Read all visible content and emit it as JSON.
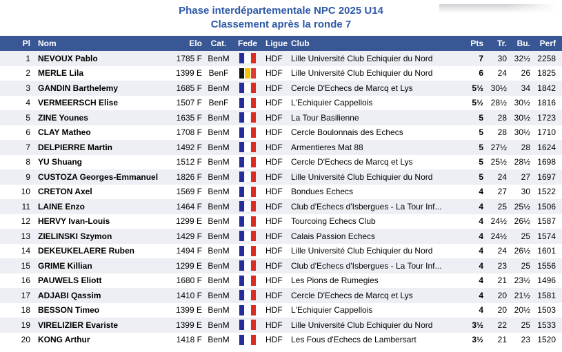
{
  "page": {
    "title_line1": "Phase interdépartementale NPC 2025 U14",
    "title_line2": "Classement après la ronde 7"
  },
  "colors": {
    "title_blue": "#2D59A7",
    "header_bg": "#3A5795",
    "row_alt_bg": "#EDEFF4",
    "flags": {
      "FRA": [
        "#272C9B",
        "#FFFFFF",
        "#DB2C23"
      ],
      "BEL": [
        "#141410",
        "#F8C300",
        "#DE3C31"
      ]
    }
  },
  "table": {
    "columns": [
      {
        "key": "pl",
        "label": "Pl"
      },
      {
        "key": "nom",
        "label": "Nom"
      },
      {
        "key": "elo",
        "label": "Elo"
      },
      {
        "key": "cat",
        "label": "Cat."
      },
      {
        "key": "fede",
        "label": "Fede"
      },
      {
        "key": "ligue",
        "label": "Ligue"
      },
      {
        "key": "club",
        "label": "Club"
      },
      {
        "key": "pts",
        "label": "Pts"
      },
      {
        "key": "tr",
        "label": "Tr."
      },
      {
        "key": "bu",
        "label": "Bu."
      },
      {
        "key": "perf",
        "label": "Perf"
      }
    ],
    "rows": [
      {
        "pl": "1",
        "nom": "NEVOUX Pablo",
        "elo": "1785 F",
        "cat": "BenM",
        "fede": "FRA",
        "ligue": "HDF",
        "club": "Lille Université Club Echiquier du Nord",
        "pts": "7",
        "tr": "30",
        "bu": "32½",
        "perf": "2258"
      },
      {
        "pl": "2",
        "nom": "MERLE Lila",
        "elo": "1399 E",
        "cat": "BenF",
        "fede": "BEL",
        "ligue": "HDF",
        "club": "Lille Université Club Echiquier du Nord",
        "pts": "6",
        "tr": "24",
        "bu": "26",
        "perf": "1825"
      },
      {
        "pl": "3",
        "nom": "GANDIN Barthelemy",
        "elo": "1685 F",
        "cat": "BenM",
        "fede": "FRA",
        "ligue": "HDF",
        "club": "Cercle D'Echecs de Marcq et Lys",
        "pts": "5½",
        "tr": "30½",
        "bu": "34",
        "perf": "1842"
      },
      {
        "pl": "4",
        "nom": "VERMEERSCH Elise",
        "elo": "1507 F",
        "cat": "BenF",
        "fede": "FRA",
        "ligue": "HDF",
        "club": "L'Echiquier Cappellois",
        "pts": "5½",
        "tr": "28½",
        "bu": "30½",
        "perf": "1816"
      },
      {
        "pl": "5",
        "nom": "ZINE Younes",
        "elo": "1635 F",
        "cat": "BenM",
        "fede": "FRA",
        "ligue": "HDF",
        "club": "La Tour Basilienne",
        "pts": "5",
        "tr": "28",
        "bu": "30½",
        "perf": "1723"
      },
      {
        "pl": "6",
        "nom": "CLAY Matheo",
        "elo": "1708 F",
        "cat": "BenM",
        "fede": "FRA",
        "ligue": "HDF",
        "club": "Cercle Boulonnais des Echecs",
        "pts": "5",
        "tr": "28",
        "bu": "30½",
        "perf": "1710"
      },
      {
        "pl": "7",
        "nom": "DELPIERRE Martin",
        "elo": "1492 F",
        "cat": "BenM",
        "fede": "FRA",
        "ligue": "HDF",
        "club": "Armentieres Mat 88",
        "pts": "5",
        "tr": "27½",
        "bu": "28",
        "perf": "1624"
      },
      {
        "pl": "8",
        "nom": "YU Shuang",
        "elo": "1512 F",
        "cat": "BenM",
        "fede": "FRA",
        "ligue": "HDF",
        "club": "Cercle D'Echecs de Marcq et Lys",
        "pts": "5",
        "tr": "25½",
        "bu": "28½",
        "perf": "1698"
      },
      {
        "pl": "9",
        "nom": "CUSTOZA Georges-Emmanuel",
        "elo": "1826 F",
        "cat": "BenM",
        "fede": "FRA",
        "ligue": "HDF",
        "club": "Lille Université Club Echiquier du Nord",
        "pts": "5",
        "tr": "24",
        "bu": "27",
        "perf": "1697"
      },
      {
        "pl": "10",
        "nom": "CRETON Axel",
        "elo": "1569 F",
        "cat": "BenM",
        "fede": "FRA",
        "ligue": "HDF",
        "club": "Bondues Echecs",
        "pts": "4",
        "tr": "27",
        "bu": "30",
        "perf": "1522"
      },
      {
        "pl": "11",
        "nom": "LAINE Enzo",
        "elo": "1464 F",
        "cat": "BenM",
        "fede": "FRA",
        "ligue": "HDF",
        "club": "Club d'Echecs d'Isbergues - La Tour Inf...",
        "pts": "4",
        "tr": "25",
        "bu": "25½",
        "perf": "1506"
      },
      {
        "pl": "12",
        "nom": "HERVY Ivan-Louis",
        "elo": "1299 E",
        "cat": "BenM",
        "fede": "FRA",
        "ligue": "HDF",
        "club": "Tourcoing Echecs Club",
        "pts": "4",
        "tr": "24½",
        "bu": "26½",
        "perf": "1587"
      },
      {
        "pl": "13",
        "nom": "ZIELINSKI Szymon",
        "elo": "1429 F",
        "cat": "BenM",
        "fede": "FRA",
        "ligue": "HDF",
        "club": "Calais Passion Echecs",
        "pts": "4",
        "tr": "24½",
        "bu": "25",
        "perf": "1574"
      },
      {
        "pl": "14",
        "nom": "DEKEUKELAERE Ruben",
        "elo": "1494 F",
        "cat": "BenM",
        "fede": "FRA",
        "ligue": "HDF",
        "club": "Lille Université Club Echiquier du Nord",
        "pts": "4",
        "tr": "24",
        "bu": "26½",
        "perf": "1601"
      },
      {
        "pl": "15",
        "nom": "GRIME Killian",
        "elo": "1299 E",
        "cat": "BenM",
        "fede": "FRA",
        "ligue": "HDF",
        "club": "Club d'Echecs d'Isbergues - La Tour Inf...",
        "pts": "4",
        "tr": "23",
        "bu": "25",
        "perf": "1556"
      },
      {
        "pl": "16",
        "nom": "PAUWELS Eliott",
        "elo": "1680 F",
        "cat": "BenM",
        "fede": "FRA",
        "ligue": "HDF",
        "club": "Les Pions de Rumegies",
        "pts": "4",
        "tr": "21",
        "bu": "23½",
        "perf": "1496"
      },
      {
        "pl": "17",
        "nom": "ADJABI Qassim",
        "elo": "1410 F",
        "cat": "BenM",
        "fede": "FRA",
        "ligue": "HDF",
        "club": "Cercle D'Echecs de Marcq et Lys",
        "pts": "4",
        "tr": "20",
        "bu": "21½",
        "perf": "1581"
      },
      {
        "pl": "18",
        "nom": "BESSON Timeo",
        "elo": "1399 E",
        "cat": "BenM",
        "fede": "FRA",
        "ligue": "HDF",
        "club": "L'Echiquier Cappellois",
        "pts": "4",
        "tr": "20",
        "bu": "20½",
        "perf": "1503"
      },
      {
        "pl": "19",
        "nom": "VIRELIZIER Evariste",
        "elo": "1399 E",
        "cat": "BenM",
        "fede": "FRA",
        "ligue": "HDF",
        "club": "Lille Université Club Echiquier du Nord",
        "pts": "3½",
        "tr": "22",
        "bu": "25",
        "perf": "1533"
      },
      {
        "pl": "20",
        "nom": "KONG Arthur",
        "elo": "1418 F",
        "cat": "BenM",
        "fede": "FRA",
        "ligue": "HDF",
        "club": "Les Fous d'Echecs de Lambersart",
        "pts": "3½",
        "tr": "21",
        "bu": "23",
        "perf": "1520"
      }
    ]
  }
}
